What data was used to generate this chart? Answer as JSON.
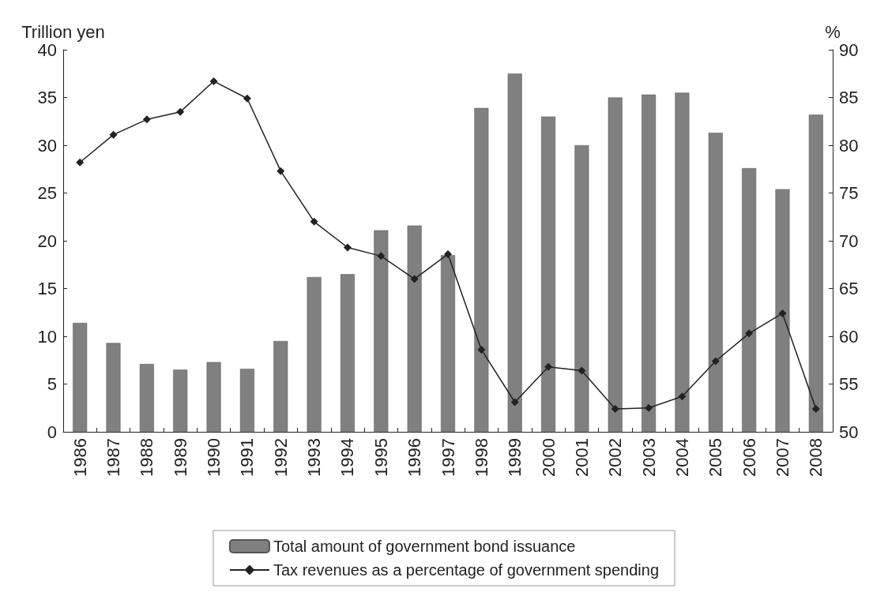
{
  "chart_data": {
    "type": "bar",
    "ylabel": "Trillion yen",
    "y2label": "%",
    "categories": [
      "1986",
      "1987",
      "1988",
      "1989",
      "1990",
      "1991",
      "1992",
      "1993",
      "1994",
      "1995",
      "1996",
      "1997",
      "1998",
      "1999",
      "2000",
      "2001",
      "2002",
      "2003",
      "2004",
      "2005",
      "2006",
      "2007",
      "2008"
    ],
    "series": [
      {
        "name": "Total amount of government bond issuance",
        "color": "#808080",
        "values": [
          11.4,
          9.3,
          7.1,
          6.5,
          7.3,
          6.6,
          9.5,
          16.2,
          16.5,
          21.1,
          21.6,
          18.5,
          33.9,
          37.5,
          33.0,
          30.0,
          35.0,
          35.3,
          35.5,
          31.3,
          27.6,
          25.4,
          33.2
        ]
      },
      {
        "name": "Tax revenues as a percentage of government spending",
        "type": "line",
        "axis": "y2",
        "color": "#222222",
        "marker": "diamond",
        "values": [
          78.2,
          81.1,
          82.7,
          83.5,
          86.7,
          84.9,
          77.3,
          72.0,
          69.3,
          68.4,
          66.0,
          68.6,
          58.6,
          53.1,
          56.8,
          56.4,
          52.4,
          52.5,
          53.7,
          57.4,
          60.3,
          62.4,
          52.4
        ]
      }
    ],
    "ylim": [
      0,
      40
    ],
    "yticks": [
      0,
      5,
      10,
      15,
      20,
      25,
      30,
      35,
      40
    ],
    "y2lim": [
      50,
      90
    ],
    "y2ticks": [
      50,
      55,
      60,
      65,
      70,
      75,
      80,
      85,
      90
    ],
    "legend": "bottom",
    "grid": false
  }
}
